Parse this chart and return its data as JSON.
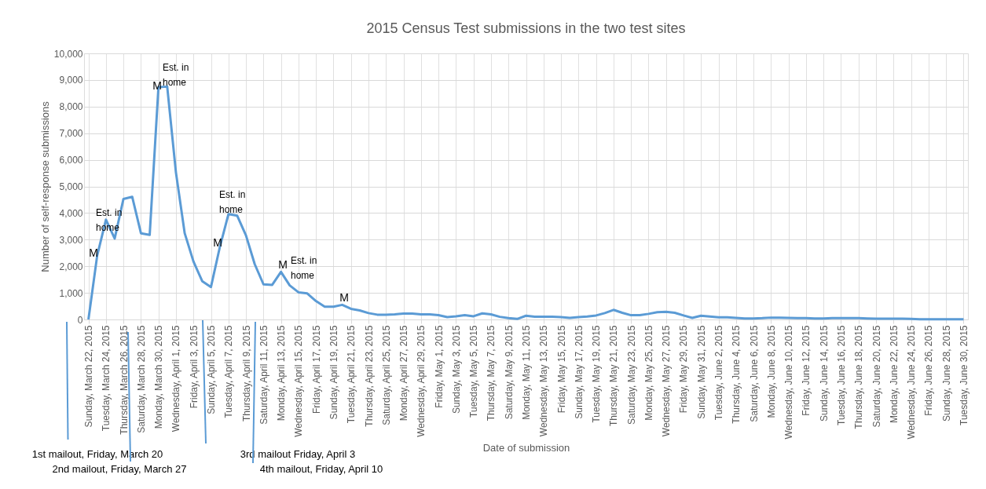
{
  "chart_data": {
    "type": "line",
    "title": "2015 Census Test submissions in the two test sites",
    "xlabel": "Date of submission",
    "ylabel": "Number of self-response submissions",
    "categories": [
      "Sunday, March 22, 2015",
      null,
      "Tuesday, March 24, 2015",
      null,
      "Thursday, March 26, 2015",
      null,
      "Saturday, March 28, 2015",
      null,
      "Monday, March 30, 2015",
      null,
      "Wednesday, April 1, 2015",
      null,
      "Friday, April 3, 2015",
      null,
      "Sunday, April 5, 2015",
      null,
      "Tuesday, April 7, 2015",
      null,
      "Thursday, April 9, 2015",
      null,
      "Saturday, April 11, 2015",
      null,
      "Monday, April 13, 2015",
      null,
      "Wednesday, April 15, 2015",
      null,
      "Friday, April 17, 2015",
      null,
      "Sunday, April 19, 2015",
      null,
      "Tuesday, April 21, 2015",
      null,
      "Thursday, April 23, 2015",
      null,
      "Saturday, April 25, 2015",
      null,
      "Monday, April 27, 2015",
      null,
      "Wednesday, April 29, 2015",
      null,
      "Friday, May 1, 2015",
      null,
      "Sunday, May 3, 2015",
      null,
      "Tuesday, May 5, 2015",
      null,
      "Thursday, May 7, 2015",
      null,
      "Saturday, May 9, 2015",
      null,
      "Monday, May 11, 2015",
      null,
      "Wednesday, May 13, 2015",
      null,
      "Friday, May 15, 2015",
      null,
      "Sunday, May 17, 2015",
      null,
      "Tuesday, May 19, 2015",
      null,
      "Thursday, May 21, 2015",
      null,
      "Saturday, May 23, 2015",
      null,
      "Monday, May 25, 2015",
      null,
      "Wednesday, May 27, 2015",
      null,
      "Friday, May 29, 2015",
      null,
      "Sunday, May 31, 2015",
      null,
      "Tuesday, June 2, 2015",
      null,
      "Thursday, June 4, 2015",
      null,
      "Saturday, June 6, 2015",
      null,
      "Monday, June 8, 2015",
      null,
      "Wednesday, June 10, 2015",
      null,
      "Friday, June 12, 2015",
      null,
      "Sunday, June 14, 2015",
      null,
      "Tuesday, June 16, 2015",
      null,
      "Thursday, June 18, 2015",
      null,
      "Saturday, June 20, 2015",
      null,
      "Monday, June 22, 2015",
      null,
      "Wednesday, June 24, 2015",
      null,
      "Friday, June 26, 2015",
      null,
      "Sunday, June 28, 2015",
      null,
      "Tuesday, June 30, 2015"
    ],
    "series": [
      {
        "color": "#5b9bd5",
        "values": [
          0,
          2400,
          3750,
          3040,
          4530,
          4610,
          3240,
          3180,
          8730,
          8750,
          5520,
          3240,
          2180,
          1440,
          1220,
          2700,
          3960,
          3900,
          3160,
          2080,
          1320,
          1300,
          1790,
          1280,
          1020,
          980,
          690,
          480,
          480,
          550,
          400,
          340,
          240,
          180,
          180,
          190,
          220,
          220,
          190,
          190,
          160,
          90,
          120,
          160,
          120,
          230,
          190,
          100,
          50,
          20,
          140,
          100,
          100,
          100,
          90,
          60,
          90,
          110,
          150,
          240,
          360,
          250,
          160,
          160,
          210,
          270,
          290,
          250,
          150,
          60,
          140,
          110,
          80,
          80,
          60,
          40,
          40,
          50,
          70,
          70,
          60,
          50,
          50,
          40,
          40,
          50,
          50,
          50,
          50,
          40,
          30,
          30,
          30,
          30,
          20,
          10,
          10,
          10,
          10,
          10,
          10
        ]
      }
    ],
    "ylim": [
      0,
      10000
    ],
    "yticks": [
      0,
      {
        "value": 1000,
        "label": "1,000"
      },
      {
        "value": 2000,
        "label": "2,000"
      },
      {
        "value": 3000,
        "label": "3,000"
      },
      {
        "value": 4000,
        "label": "4,000"
      },
      {
        "value": 5000,
        "label": "5,000"
      },
      {
        "value": 6000,
        "label": "6,000"
      },
      {
        "value": 7000,
        "label": "7,000"
      },
      {
        "value": 8000,
        "label": "8,000"
      },
      {
        "value": 9000,
        "label": "9,000"
      },
      {
        "value": 10000,
        "label": "10,000"
      }
    ],
    "grid": true,
    "legend": false,
    "marker": "none",
    "line_style": "solid",
    "annotations": [
      "M",
      "Est. in\nhome",
      "M",
      "Est. in\nhome",
      "M",
      "Est. in\nhome",
      "M",
      "Est. in\nhome",
      "M",
      "1st mailout, Friday, March 20",
      "2nd mailout, Friday, March 27",
      "3rd mailout Friday, April 3",
      "4th mailout, Friday, April 10"
    ]
  }
}
